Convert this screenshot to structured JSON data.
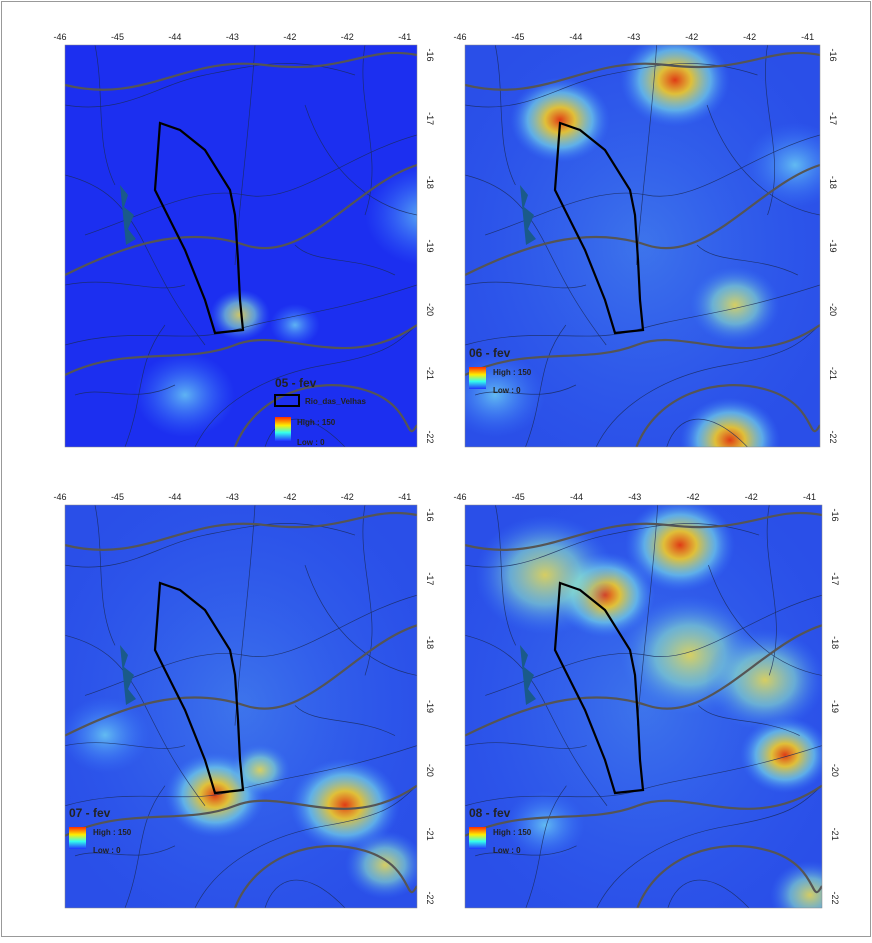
{
  "panels": [
    {
      "title": "05 - fev",
      "x_ticks": [
        "-46",
        "-45",
        "-44",
        "-43",
        "-42",
        "-42",
        "-41"
      ],
      "y_ticks": [
        "-16",
        "-17",
        "-18",
        "-19",
        "-20",
        "-21",
        "-22"
      ],
      "legend": {
        "layer": "Rio_das_Velhas",
        "high": "High : 150",
        "low": "Low : 0"
      }
    },
    {
      "title": "06 - fev",
      "x_ticks": [
        "-46",
        "-45",
        "-44",
        "-43",
        "-42",
        "-42",
        "-41"
      ],
      "y_ticks": [
        "-16",
        "-17",
        "-18",
        "-19",
        "-20",
        "-21",
        "-22"
      ],
      "legend": {
        "high": "High : 150",
        "low": "Low : 0"
      }
    },
    {
      "title": "07 - fev",
      "x_ticks": [
        "-46",
        "-45",
        "-44",
        "-43",
        "-42",
        "-42",
        "-41"
      ],
      "y_ticks": [
        "-16",
        "-17",
        "-18",
        "-19",
        "-20",
        "-21",
        "-22"
      ],
      "legend": {
        "high": "High : 150",
        "low": "Low : 0"
      }
    },
    {
      "title": "08 - fev",
      "x_ticks": [
        "-46",
        "-45",
        "-44",
        "-43",
        "-42",
        "-42",
        "-41"
      ],
      "y_ticks": [
        "-16",
        "-17",
        "-18",
        "-19",
        "-20",
        "-21",
        "-22"
      ],
      "legend": {
        "high": "High : 150",
        "low": "Low : 0"
      }
    }
  ]
}
